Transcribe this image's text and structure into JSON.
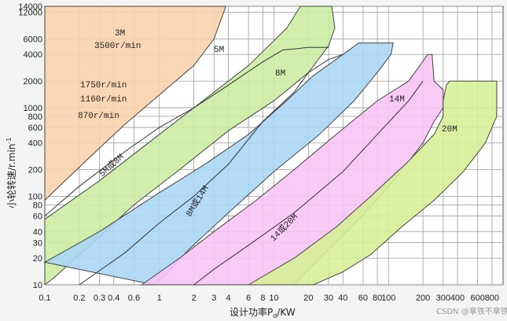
{
  "chart_data": {
    "type": "area",
    "xlabel": "设计功率P",
    "xlabel_sub": "d",
    "xlabel_unit": "/KW",
    "ylabel": "小轮转速/r.min",
    "ylabel_sup": "-1",
    "x_scale": "log",
    "y_scale": "log",
    "xlim": [
      0.1,
      1000
    ],
    "ylim": [
      10,
      14000
    ],
    "grid": true,
    "x_ticks": [
      0.1,
      0.2,
      0.3,
      0.4,
      0.6,
      1,
      2,
      3,
      4,
      6,
      8,
      10,
      20,
      30,
      40,
      60,
      80,
      100,
      200,
      300,
      400,
      600,
      800
    ],
    "y_ticks": [
      10,
      20,
      30,
      40,
      60,
      80,
      100,
      200,
      400,
      600,
      800,
      1000,
      2000,
      4000,
      6000,
      12000,
      14000
    ],
    "series": [
      {
        "name": "3M",
        "color": "#f9d1aa",
        "polygon": [
          [
            0.1,
            10
          ],
          [
            0.1,
            14000
          ],
          [
            3.8,
            14000
          ],
          [
            3,
            6000
          ],
          [
            2,
            3000
          ],
          [
            1,
            1400
          ],
          [
            0.5,
            650
          ],
          [
            0.3,
            350
          ],
          [
            0.15,
            150
          ],
          [
            0.1,
            90
          ]
        ]
      },
      {
        "name": "5M",
        "color": "#c9eda2",
        "polygon": [
          [
            0.1,
            55
          ],
          [
            0.3,
            150
          ],
          [
            1,
            500
          ],
          [
            2,
            1000
          ],
          [
            6,
            3000
          ],
          [
            13,
            8000
          ],
          [
            17,
            14000
          ],
          [
            32,
            14000
          ],
          [
            34,
            8000
          ],
          [
            30,
            5000
          ],
          [
            20,
            2500
          ],
          [
            10,
            1200
          ],
          [
            4,
            550
          ],
          [
            1.5,
            200
          ],
          [
            0.6,
            80
          ],
          [
            0.3,
            35
          ],
          [
            0.17,
            18
          ],
          [
            0.12,
            12
          ],
          [
            0.1,
            10
          ]
        ]
      },
      {
        "name": "8M",
        "color": "#a9d6f5",
        "polygon": [
          [
            0.1,
            18
          ],
          [
            0.3,
            40
          ],
          [
            1,
            110
          ],
          [
            2.5,
            230
          ],
          [
            6,
            500
          ],
          [
            12,
            1100
          ],
          [
            22,
            2300
          ],
          [
            40,
            4000
          ],
          [
            55,
            5400
          ],
          [
            110,
            5400
          ],
          [
            105,
            4000
          ],
          [
            80,
            2500
          ],
          [
            50,
            1200
          ],
          [
            25,
            500
          ],
          [
            10,
            190
          ],
          [
            4,
            65
          ],
          [
            1.8,
            25
          ],
          [
            1.2,
            14
          ],
          [
            0.9,
            10
          ]
        ]
      },
      {
        "name": "14M",
        "color": "#f7c3f5",
        "polygon": [
          [
            0.7,
            10
          ],
          [
            1.5,
            20
          ],
          [
            3,
            40
          ],
          [
            7,
            90
          ],
          [
            15,
            200
          ],
          [
            35,
            500
          ],
          [
            80,
            1200
          ],
          [
            150,
            2000
          ],
          [
            220,
            4000
          ],
          [
            240,
            4000
          ],
          [
            250,
            2000
          ],
          [
            300,
            1600
          ],
          [
            300,
            1000
          ],
          [
            250,
            700
          ],
          [
            200,
            400
          ],
          [
            140,
            220
          ],
          [
            90,
            110
          ],
          [
            55,
            55
          ],
          [
            30,
            25
          ],
          [
            17,
            12
          ],
          [
            15,
            10
          ]
        ]
      },
      {
        "name": "20M",
        "color": "#d6ef94",
        "polygon": [
          [
            6,
            10
          ],
          [
            15,
            20
          ],
          [
            35,
            45
          ],
          [
            70,
            100
          ],
          [
            150,
            250
          ],
          [
            250,
            500
          ],
          [
            300,
            800
          ],
          [
            300,
            1200
          ],
          [
            320,
            1800
          ],
          [
            340,
            2000
          ],
          [
            880,
            2000
          ],
          [
            880,
            800
          ],
          [
            700,
            400
          ],
          [
            450,
            190
          ],
          [
            250,
            90
          ],
          [
            130,
            45
          ],
          [
            70,
            22
          ],
          [
            40,
            14
          ],
          [
            22,
            10
          ]
        ]
      }
    ],
    "divider_lines": [
      {
        "name": "5M或8M",
        "points": [
          [
            0.1,
            60
          ],
          [
            0.2,
            130
          ],
          [
            0.5,
            320
          ],
          [
            1,
            600
          ],
          [
            2,
            1000
          ],
          [
            4,
            1800
          ],
          [
            8,
            3300
          ],
          [
            12,
            4500
          ],
          [
            20,
            4800
          ],
          [
            30,
            4800
          ]
        ]
      },
      {
        "name": "8M或14M",
        "points": [
          [
            0.2,
            10
          ],
          [
            0.5,
            23
          ],
          [
            1,
            50
          ],
          [
            2,
            100
          ],
          [
            4,
            230
          ],
          [
            8,
            700
          ],
          [
            15,
            1500
          ],
          [
            20,
            2500
          ],
          [
            30,
            3500
          ],
          [
            40,
            4000
          ]
        ]
      },
      {
        "name": "14或20M",
        "points": [
          [
            2,
            10
          ],
          [
            3,
            15
          ],
          [
            6,
            28
          ],
          [
            15,
            65
          ],
          [
            40,
            190
          ],
          [
            80,
            500
          ],
          [
            150,
            1200
          ],
          [
            200,
            2000
          ]
        ]
      }
    ],
    "area_labels": {
      "3M": "3M",
      "5M": "5M",
      "8M": "8M",
      "14M": "14M",
      "20M": "20M",
      "5M或8M": "5M或8M",
      "8M或14M": "8M或14M",
      "14或20M": "14或20M"
    },
    "speed_annotations": [
      "3500r/min",
      "1750r/min",
      "1160r/min",
      "870r/min"
    ]
  },
  "watermark": "CSDN @拿铁不拿铁"
}
